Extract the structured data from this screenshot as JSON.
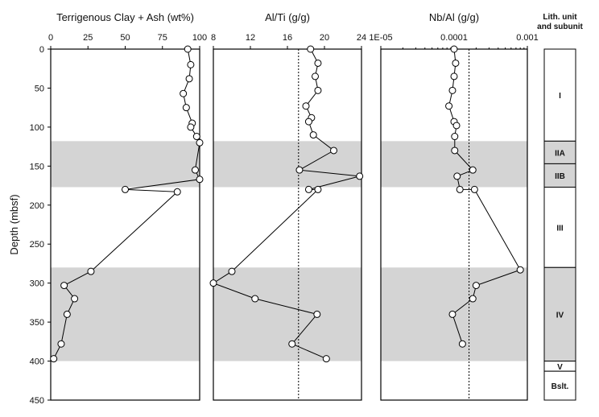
{
  "colors": {
    "shade": "#d4d4d4",
    "line": "#000000",
    "marker_fill": "#ffffff"
  },
  "chart_data": {
    "type": "line",
    "ylabel": "Depth (mbsf)",
    "ylim": [
      0,
      450
    ],
    "y_inverted": true,
    "yticks": [
      0,
      50,
      100,
      150,
      200,
      250,
      300,
      350,
      400,
      450
    ],
    "shaded_depth_intervals": [
      [
        118,
        177
      ],
      [
        280,
        400
      ]
    ],
    "panels": [
      {
        "title": "Terrigenous Clay + Ash (wt%)",
        "scale": "linear",
        "xlim": [
          0,
          100
        ],
        "xticks": [
          "0",
          "25",
          "50",
          "75",
          "100"
        ],
        "xtick_values": [
          0,
          25,
          50,
          75,
          100
        ],
        "depth": [
          0,
          20,
          38,
          57,
          75,
          95,
          100,
          112,
          120,
          155,
          167,
          180,
          183,
          285,
          303,
          320,
          340,
          378,
          397
        ],
        "values": [
          92,
          94,
          93,
          89,
          91,
          95,
          94,
          98,
          100,
          97,
          100,
          50,
          85,
          27,
          9,
          16,
          11,
          7,
          2
        ]
      },
      {
        "title": "Al/Ti (g/g)",
        "scale": "linear",
        "xlim": [
          8,
          24
        ],
        "xticks": [
          "8",
          "12",
          "16",
          "20",
          "24"
        ],
        "xtick_values": [
          8,
          12,
          16,
          20,
          24
        ],
        "reference_line": 17.2,
        "depth": [
          0,
          18,
          35,
          53,
          73,
          88,
          93,
          110,
          130,
          155,
          163,
          180,
          180,
          285,
          300,
          320,
          340,
          378,
          397
        ],
        "values": [
          18.5,
          19.3,
          19,
          19.3,
          18,
          18.6,
          18.3,
          18.8,
          21,
          17.3,
          23.8,
          18.3,
          19.3,
          10,
          8,
          12.5,
          19.2,
          16.5,
          20.2
        ]
      },
      {
        "title": "Nb/Al (g/g)",
        "scale": "log",
        "xlim": [
          1e-05,
          0.001
        ],
        "xticks": [
          "1E-05",
          "0.0001",
          "0.001"
        ],
        "xtick_values": [
          1e-05,
          0.0001,
          0.001
        ],
        "reference_line": 0.00016,
        "depth": [
          0,
          18,
          35,
          53,
          73,
          93,
          98,
          112,
          130,
          155,
          163,
          180,
          180,
          283,
          303,
          320,
          340,
          378
        ],
        "values": [
          0.0001,
          0.000105,
          0.0001,
          9.5e-05,
          8.5e-05,
          0.0001,
          0.000108,
          0.000102,
          0.000102,
          0.00018,
          0.00011,
          0.00012,
          0.00019,
          0.0008,
          0.0002,
          0.00018,
          9.5e-05,
          0.00013
        ]
      }
    ],
    "lithology": {
      "header": [
        "Lith. unit",
        "and subunit"
      ],
      "units": [
        {
          "label": "I",
          "top": 0,
          "bottom": 118
        },
        {
          "label": "IIA",
          "top": 118,
          "bottom": 147
        },
        {
          "label": "IIB",
          "top": 147,
          "bottom": 177
        },
        {
          "label": "III",
          "top": 177,
          "bottom": 280
        },
        {
          "label": "IV",
          "top": 280,
          "bottom": 400
        },
        {
          "label": "V",
          "top": 400,
          "bottom": 413
        },
        {
          "label": "Bslt.",
          "top": 413,
          "bottom": 450
        }
      ]
    }
  }
}
